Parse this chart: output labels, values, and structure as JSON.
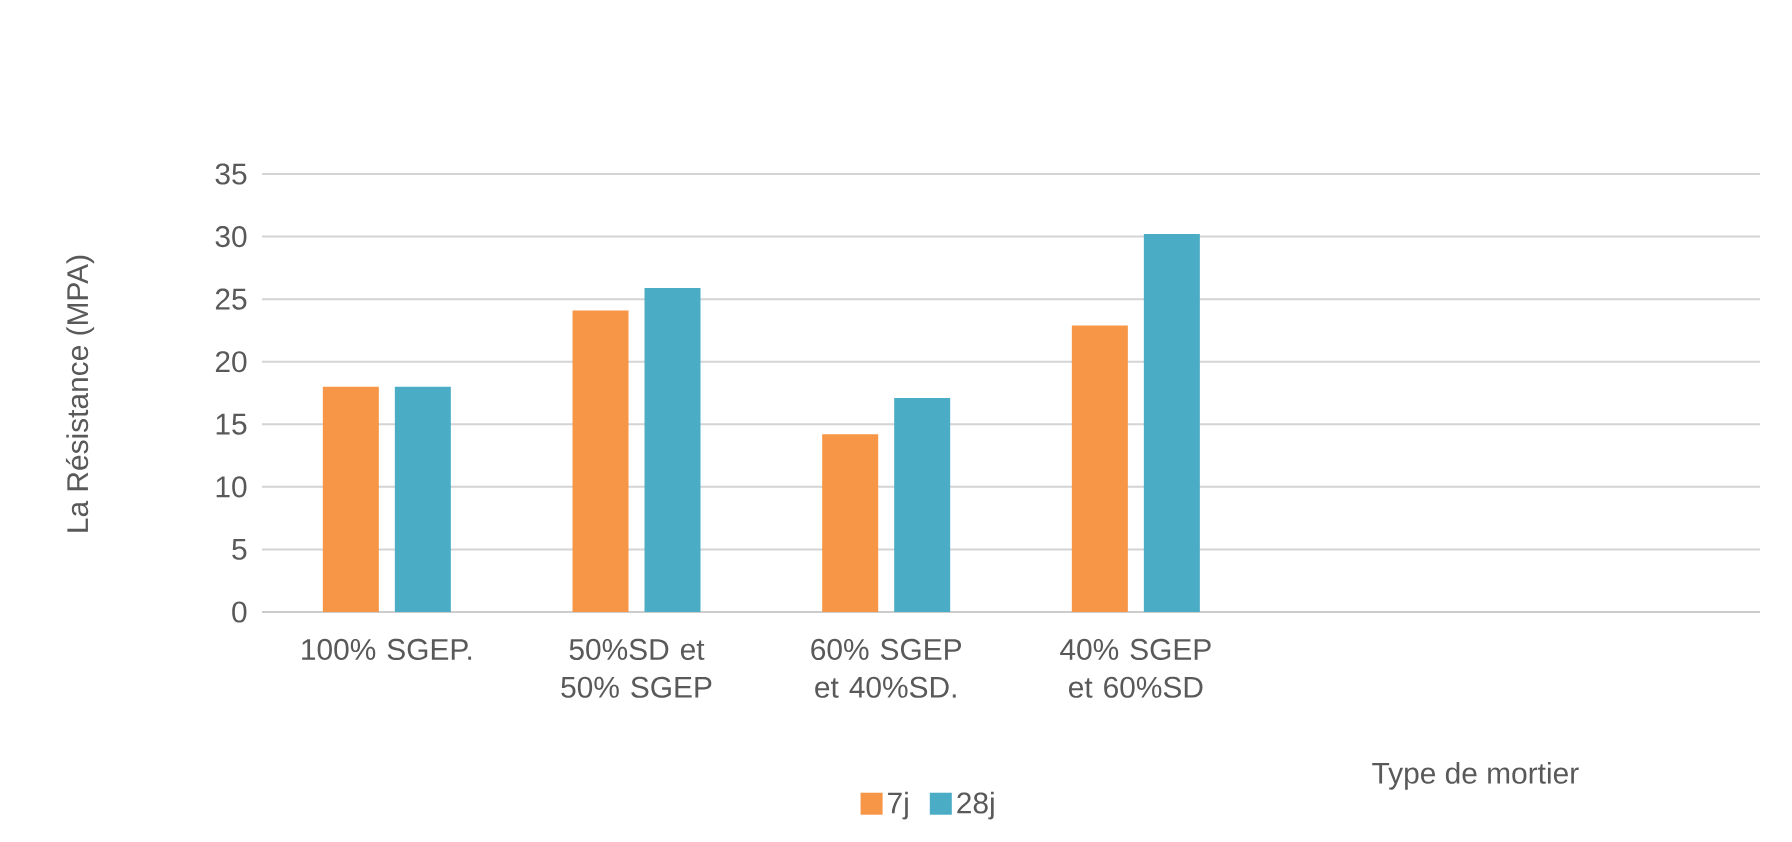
{
  "chart_data": {
    "type": "bar",
    "ylabel": "La Résistance (MPA)",
    "xlabel": "Type de mortier",
    "categories": [
      "100% SGEP.",
      "50%SD et 50% SGEP",
      "60% SGEP et 40%SD.",
      "40% SGEP et 60%SD",
      null,
      null
    ],
    "series": [
      {
        "name": "7j",
        "color": "#f79646",
        "values": [
          18,
          24.1,
          14.2,
          22.9,
          null,
          null
        ]
      },
      {
        "name": "28j",
        "color": "#4bacc6",
        "values": [
          18,
          25.9,
          17.1,
          30.2,
          null,
          null
        ]
      }
    ],
    "ylim": [
      0,
      35
    ],
    "yticks": [
      0,
      5,
      10,
      15,
      20,
      25,
      30,
      35
    ],
    "grid": "y",
    "legend": "bottom"
  }
}
